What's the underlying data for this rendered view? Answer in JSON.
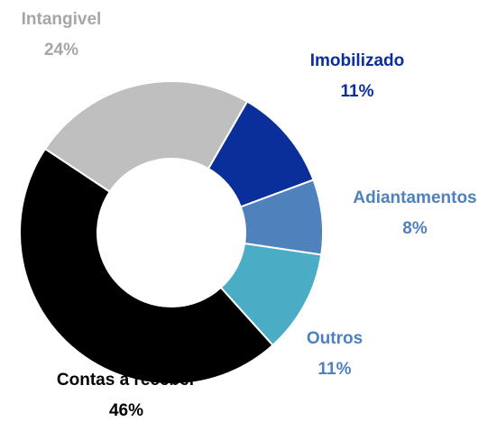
{
  "chart_data": {
    "type": "donut",
    "categories": [
      "Imobilizado",
      "Adiantamentos",
      "Outros",
      "Contas a receber",
      "Intangivel"
    ],
    "values": [
      11,
      8,
      11,
      46,
      24
    ],
    "value_labels": [
      "11%",
      "8%",
      "11%",
      "46%",
      "24%"
    ],
    "colors": [
      "#0a2f9a",
      "#4f81bd",
      "#4bacc6",
      "#000000",
      "#bfbfbf"
    ],
    "label_colors": [
      "#0a2f9a",
      "#4f81bd",
      "#4f81bd",
      "#000000",
      "#a6a6a6"
    ]
  }
}
